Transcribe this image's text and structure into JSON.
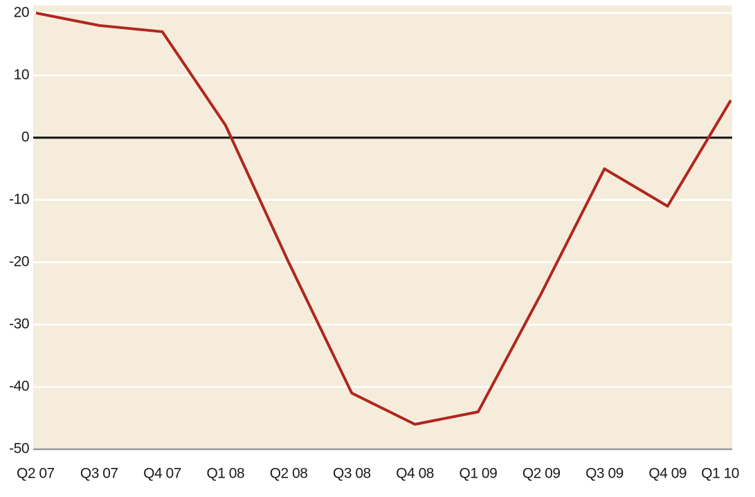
{
  "chart_data": {
    "type": "line",
    "categories": [
      "Q2 07",
      "Q3 07",
      "Q4 07",
      "Q1 08",
      "Q2 08",
      "Q3 08",
      "Q4 08",
      "Q1 09",
      "Q2 09",
      "Q3 09",
      "Q4 09",
      "Q1 10"
    ],
    "values": [
      20,
      18,
      17,
      2,
      -20,
      -41,
      -46,
      -44,
      -25,
      -5,
      -11,
      6
    ],
    "color": "#b0261e",
    "ylim": [
      -50,
      21.2
    ],
    "yticks": [
      20,
      10,
      0,
      -10,
      -20,
      -30,
      -40,
      -50
    ],
    "grid": true
  }
}
